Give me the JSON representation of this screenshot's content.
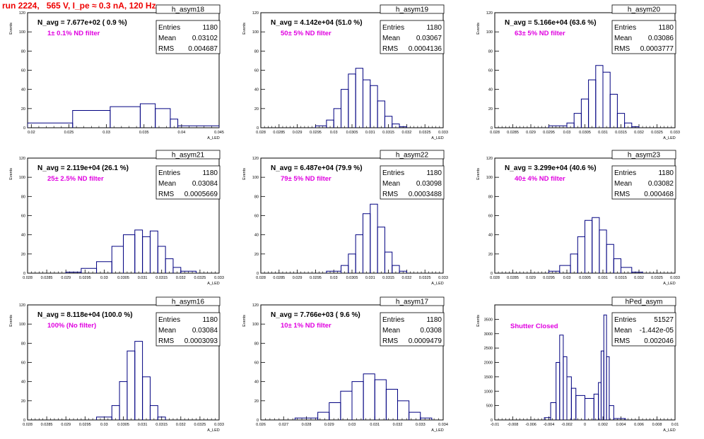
{
  "run_title": "run 2224,   565 V, I_pe ≈ 0.3 nA, 120 Hz",
  "colors": {
    "hist_line": "#000080",
    "annotation": "#e000e0",
    "title": "#e00000"
  },
  "stats_labels": {
    "entries": "Entries",
    "mean": "Mean",
    "rms": "RMS"
  },
  "ylabel": "Events",
  "xlabel": "A_LED",
  "chart_data": [
    {
      "type": "histogram",
      "name": "h_asym18",
      "navg": "N_avg = 7.677e+02 ( 0.9 %)",
      "filter": "1± 0.1% ND filter",
      "entries": "1180",
      "mean": "0.03102",
      "rms": "0.004687",
      "xlim": [
        0.0195,
        0.045
      ],
      "ylim": [
        0,
        120
      ],
      "xticks": [
        0.02,
        0.025,
        0.03,
        0.035,
        0.04,
        0.045
      ],
      "xticklabels": [
        "0.02",
        "0.025",
        "0.03",
        "0.035",
        "0.04",
        "0.045"
      ],
      "yticks": [
        0,
        20,
        40,
        60,
        80,
        100,
        120
      ],
      "bin_edges": [
        0.0195,
        0.0255,
        0.0305,
        0.0345,
        0.0365,
        0.0385,
        0.0395,
        0.045
      ],
      "values": [
        5,
        18,
        22,
        25,
        20,
        9,
        2
      ]
    },
    {
      "type": "histogram",
      "name": "h_asym19",
      "navg": "N_avg = 4.142e+04 (51.0 %)",
      "filter": "50± 5% ND filter",
      "entries": "1180",
      "mean": "0.03067",
      "rms": "0.0004136",
      "xlim": [
        0.028,
        0.033
      ],
      "ylim": [
        0,
        120
      ],
      "xticks": [
        0.028,
        0.0285,
        0.029,
        0.0295,
        0.03,
        0.0305,
        0.031,
        0.0315,
        0.032,
        0.0325,
        0.033
      ],
      "xticklabels": [
        "0.028",
        "0.0285",
        "0.029",
        "0.0295",
        "0.03",
        "0.0305",
        "0.031",
        "0.0315",
        "0.032",
        "0.0325",
        "0.033"
      ],
      "yticks": [
        0,
        20,
        40,
        60,
        80,
        100,
        120
      ],
      "bin_edges": [
        0.0295,
        0.0298,
        0.03,
        0.0302,
        0.0304,
        0.0306,
        0.0308,
        0.031,
        0.0312,
        0.0314,
        0.0316,
        0.0318,
        0.032
      ],
      "values": [
        2,
        8,
        20,
        40,
        56,
        62,
        50,
        44,
        28,
        12,
        4,
        1
      ]
    },
    {
      "type": "histogram",
      "name": "h_asym20",
      "navg": "N_avg = 5.166e+04 (63.6 %)",
      "filter": "63± 5% ND filter",
      "entries": "1180",
      "mean": "0.03086",
      "rms": "0.0003777",
      "xlim": [
        0.028,
        0.033
      ],
      "ylim": [
        0,
        120
      ],
      "xticks": [
        0.028,
        0.0285,
        0.029,
        0.0295,
        0.03,
        0.0305,
        0.031,
        0.0315,
        0.032,
        0.0325,
        0.033
      ],
      "xticklabels": [
        "0.028",
        "0.0285",
        "0.029",
        "0.0295",
        "0.03",
        "0.0305",
        "0.031",
        "0.0315",
        "0.032",
        "0.0325",
        "0.033"
      ],
      "yticks": [
        0,
        20,
        40,
        60,
        80,
        100,
        120
      ],
      "bin_edges": [
        0.0295,
        0.03,
        0.0302,
        0.0304,
        0.0306,
        0.0308,
        0.031,
        0.0312,
        0.0314,
        0.0316,
        0.0318,
        0.032
      ],
      "values": [
        2,
        5,
        15,
        30,
        50,
        65,
        58,
        35,
        15,
        5,
        1
      ]
    },
    {
      "type": "histogram",
      "name": "h_asym21",
      "navg": "N_avg = 2.119e+04 (26.1 %)",
      "filter": "25± 2.5% ND filter",
      "entries": "1180",
      "mean": "0.03084",
      "rms": "0.0005669",
      "xlim": [
        0.028,
        0.033
      ],
      "ylim": [
        0,
        120
      ],
      "xticks": [
        0.028,
        0.0285,
        0.029,
        0.0295,
        0.03,
        0.0305,
        0.031,
        0.0315,
        0.032,
        0.0325,
        0.033
      ],
      "xticklabels": [
        "0.028",
        "0.0285",
        "0.029",
        "0.0295",
        "0.03",
        "0.0305",
        "0.031",
        "0.0315",
        "0.032",
        "0.0325",
        "0.033"
      ],
      "yticks": [
        0,
        20,
        40,
        60,
        80,
        100,
        120
      ],
      "bin_edges": [
        0.029,
        0.0294,
        0.0298,
        0.0302,
        0.0305,
        0.0308,
        0.031,
        0.0312,
        0.0314,
        0.0316,
        0.0318,
        0.032,
        0.0324
      ],
      "values": [
        1,
        5,
        12,
        28,
        40,
        45,
        38,
        44,
        28,
        15,
        6,
        2
      ]
    },
    {
      "type": "histogram",
      "name": "h_asym22",
      "navg": "N_avg = 6.487e+04 (79.9 %)",
      "filter": "79± 5% ND filter",
      "entries": "1180",
      "mean": "0.03098",
      "rms": "0.0003488",
      "xlim": [
        0.028,
        0.033
      ],
      "ylim": [
        0,
        120
      ],
      "xticks": [
        0.028,
        0.0285,
        0.029,
        0.0295,
        0.03,
        0.0305,
        0.031,
        0.0315,
        0.032,
        0.0325,
        0.033
      ],
      "xticklabels": [
        "0.028",
        "0.0285",
        "0.029",
        "0.0295",
        "0.03",
        "0.0305",
        "0.031",
        "0.0315",
        "0.032",
        "0.0325",
        "0.033"
      ],
      "yticks": [
        0,
        20,
        40,
        60,
        80,
        100,
        120
      ],
      "bin_edges": [
        0.0298,
        0.0302,
        0.0304,
        0.0306,
        0.0308,
        0.031,
        0.0312,
        0.0314,
        0.0316,
        0.0318,
        0.032
      ],
      "values": [
        2,
        8,
        20,
        40,
        62,
        72,
        48,
        22,
        8,
        2
      ]
    },
    {
      "type": "histogram",
      "name": "h_asym23",
      "navg": "N_avg = 3.299e+04 (40.6 %)",
      "filter": "40± 4% ND filter",
      "entries": "1180",
      "mean": "0.03082",
      "rms": "0.000468",
      "xlim": [
        0.028,
        0.033
      ],
      "ylim": [
        0,
        120
      ],
      "xticks": [
        0.028,
        0.0285,
        0.029,
        0.0295,
        0.03,
        0.0305,
        0.031,
        0.0315,
        0.032,
        0.0325,
        0.033
      ],
      "xticklabels": [
        "0.028",
        "0.0285",
        "0.029",
        "0.0295",
        "0.03",
        "0.0305",
        "0.031",
        "0.0315",
        "0.032",
        "0.0325",
        "0.033"
      ],
      "yticks": [
        0,
        20,
        40,
        60,
        80,
        100,
        120
      ],
      "bin_edges": [
        0.0295,
        0.0298,
        0.0301,
        0.0303,
        0.0305,
        0.0307,
        0.0309,
        0.0311,
        0.0313,
        0.0315,
        0.0318,
        0.0321
      ],
      "values": [
        2,
        8,
        20,
        38,
        55,
        58,
        45,
        30,
        15,
        6,
        1
      ]
    },
    {
      "type": "histogram",
      "name": "h_asym16",
      "navg": "N_avg = 8.118e+04 (100.0 %)",
      "filter": "100% (No filter)",
      "entries": "1180",
      "mean": "0.03084",
      "rms": "0.0003093",
      "xlim": [
        0.028,
        0.033
      ],
      "ylim": [
        0,
        120
      ],
      "xticks": [
        0.028,
        0.0285,
        0.029,
        0.0295,
        0.03,
        0.0305,
        0.031,
        0.0315,
        0.032,
        0.0325,
        0.033
      ],
      "xticklabels": [
        "0.028",
        "0.0285",
        "0.029",
        "0.0295",
        "0.03",
        "0.0305",
        "0.031",
        "0.0315",
        "0.032",
        "0.0325",
        "0.033"
      ],
      "yticks": [
        0,
        20,
        40,
        60,
        80,
        100,
        120
      ],
      "bin_edges": [
        0.0298,
        0.0302,
        0.0304,
        0.0306,
        0.0308,
        0.031,
        0.0312,
        0.0314,
        0.0316
      ],
      "values": [
        3,
        15,
        40,
        72,
        82,
        45,
        15,
        3
      ]
    },
    {
      "type": "histogram",
      "name": "h_asym17",
      "navg": "N_avg = 7.766e+03 ( 9.6 %)",
      "filter": "10± 1% ND filter",
      "entries": "1180",
      "mean": "0.0308",
      "rms": "0.0009479",
      "xlim": [
        0.026,
        0.034
      ],
      "ylim": [
        0,
        120
      ],
      "xticks": [
        0.026,
        0.027,
        0.028,
        0.029,
        0.03,
        0.031,
        0.032,
        0.033,
        0.034
      ],
      "xticklabels": [
        "0.026",
        "0.027",
        "0.028",
        "0.029",
        "0.03",
        "0.031",
        "0.032",
        "0.033",
        "0.034"
      ],
      "yticks": [
        0,
        20,
        40,
        60,
        80,
        100,
        120
      ],
      "bin_edges": [
        0.0275,
        0.0285,
        0.029,
        0.0295,
        0.03,
        0.0305,
        0.031,
        0.0315,
        0.032,
        0.0325,
        0.033,
        0.0335
      ],
      "values": [
        2,
        8,
        18,
        30,
        40,
        48,
        42,
        32,
        20,
        8,
        2
      ]
    },
    {
      "type": "histogram",
      "name": "hPed_asym",
      "navg": "",
      "filter": "Shutter Closed",
      "entries": "51527",
      "mean": "-1.442e-05",
      "rms": "0.002046",
      "xlim": [
        -0.01,
        0.01
      ],
      "ylim": [
        0,
        4000
      ],
      "xticks": [
        -0.01,
        -0.008,
        -0.006,
        -0.004,
        -0.002,
        0,
        0.002,
        0.004,
        0.006,
        0.008,
        0.01
      ],
      "xticklabels": [
        "-0.01",
        "-0.008",
        "-0.006",
        "-0.004",
        "-0.002",
        "0",
        "0.002",
        "0.004",
        "0.006",
        "0.008",
        "0.01"
      ],
      "yticks": [
        0,
        500,
        1000,
        1500,
        2000,
        2500,
        3000,
        3500
      ],
      "bin_edges": [
        -0.0045,
        -0.0038,
        -0.0032,
        -0.0028,
        -0.0024,
        -0.002,
        -0.0015,
        -0.001,
        0,
        0.001,
        0.0015,
        0.0018,
        0.0021,
        0.0024,
        0.0027,
        0.0032,
        0.0045
      ],
      "values": [
        80,
        600,
        2000,
        2950,
        2200,
        1500,
        1100,
        850,
        750,
        900,
        1300,
        2400,
        3650,
        2200,
        500,
        50
      ]
    }
  ]
}
